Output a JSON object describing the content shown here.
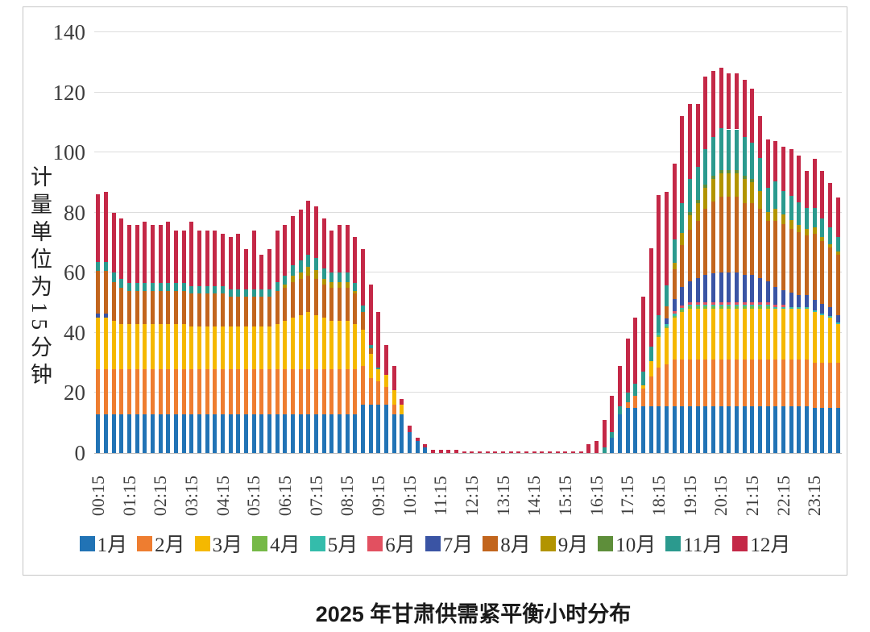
{
  "chart_title": "2025 年甘肃供需紧平衡小时分布",
  "y_axis_title": "计量单位为15分钟",
  "chart_data": {
    "type": "bar",
    "stacked": true,
    "grid": true,
    "legend_position": "bottom",
    "bar_count": 96,
    "x_start": "00:15",
    "x_interval_minutes": 15,
    "x_tick_labels": [
      "00:15",
      "01:15",
      "02:15",
      "03:15",
      "04:15",
      "05:15",
      "06:15",
      "07:15",
      "08:15",
      "09:15",
      "10:15",
      "11:15",
      "12:15",
      "13:15",
      "14:15",
      "15:15",
      "16:15",
      "17:15",
      "18:15",
      "19:15",
      "20:15",
      "21:15",
      "22:15",
      "23:15"
    ],
    "y_ticks": [
      0,
      20,
      40,
      60,
      80,
      100,
      120,
      140
    ],
    "y_max": 140,
    "series": [
      {
        "name": "1月",
        "color": "#2173b5",
        "values": [
          13,
          13,
          13,
          13,
          13,
          13,
          13,
          13,
          13,
          13,
          13,
          13,
          13,
          13,
          13,
          13,
          13,
          13,
          13,
          13,
          13,
          13,
          13,
          13,
          13,
          13,
          13,
          13,
          13,
          13,
          13,
          13,
          13,
          13,
          16,
          16,
          16,
          16,
          13,
          13,
          7,
          4,
          2,
          0,
          0,
          0,
          0,
          0,
          0,
          0,
          0,
          0,
          0,
          0,
          0,
          0,
          0,
          0,
          0,
          0,
          0,
          0,
          0,
          0,
          0,
          0,
          5,
          13,
          15,
          15,
          15.5,
          15.5,
          15.5,
          15.5,
          15.5,
          15.5,
          15.5,
          15.5,
          15.5,
          15.5,
          15.5,
          15.5,
          15.5,
          15.5,
          15.5,
          15.5,
          15.5,
          15.5,
          15.5,
          15.5,
          15.5,
          15.5,
          15,
          15,
          15,
          15
        ]
      },
      {
        "name": "2月",
        "color": "#ee7d30",
        "values": [
          15,
          15,
          15,
          15,
          15,
          15,
          15,
          15,
          15,
          15,
          15,
          15,
          15,
          15,
          15,
          15,
          15,
          15,
          15,
          15,
          15,
          15,
          15,
          15,
          15,
          15,
          15,
          15,
          15,
          15,
          15,
          15,
          15,
          15,
          13,
          9,
          8,
          6,
          3,
          0,
          0,
          0,
          0,
          0,
          0,
          0,
          0,
          0,
          0,
          0,
          0,
          0,
          0,
          0,
          0,
          0,
          0,
          0,
          0,
          0,
          0,
          0,
          0,
          0,
          0,
          0,
          0,
          0,
          2,
          4,
          6,
          10,
          13,
          14,
          15.5,
          15.5,
          15.5,
          15.5,
          15.5,
          15.5,
          15.5,
          15.5,
          15.5,
          15.5,
          15.5,
          15.5,
          15.5,
          15.5,
          15.5,
          15.5,
          15.5,
          15.5,
          15,
          15,
          15,
          15
        ]
      },
      {
        "name": "3月",
        "color": "#f5b800",
        "values": [
          17,
          17,
          16,
          15,
          15,
          15,
          15,
          15,
          15,
          15,
          15,
          15,
          14,
          14,
          14,
          14,
          14,
          14,
          14,
          14,
          14,
          14,
          14,
          15,
          16,
          17,
          18,
          19,
          18,
          17,
          16,
          16,
          16,
          15,
          12,
          8,
          4,
          4,
          5,
          3,
          0,
          0,
          0,
          0,
          0,
          0,
          0,
          0,
          0,
          0,
          0,
          0,
          0,
          0,
          0,
          0,
          0,
          0,
          0,
          0,
          0,
          0,
          0,
          0,
          0,
          0,
          0,
          0,
          0,
          0,
          1,
          5,
          10,
          12,
          14,
          16,
          17,
          17,
          17,
          17,
          17,
          17,
          17,
          17,
          17,
          17,
          17,
          17,
          17,
          17,
          17,
          17,
          17,
          16,
          15,
          13
        ]
      },
      {
        "name": "4月",
        "color": "#76b947",
        "values": [
          0,
          0,
          0,
          0,
          0,
          0,
          0,
          0,
          0,
          0,
          0,
          0,
          0,
          0,
          0,
          0,
          0,
          0,
          0,
          0,
          0,
          0,
          0,
          0,
          0,
          0,
          0,
          0,
          0,
          0,
          0,
          0,
          0,
          0,
          0,
          0,
          0,
          0,
          0,
          0,
          0,
          0,
          0,
          0,
          0,
          0,
          0,
          0,
          0,
          0,
          0,
          0,
          0,
          0,
          0,
          0,
          0,
          0,
          0,
          0,
          0,
          0,
          0,
          0,
          0,
          0,
          0,
          0,
          0,
          0,
          0,
          0,
          0.7,
          0.7,
          0.7,
          0.7,
          0.7,
          0.7,
          0.7,
          0.7,
          0.7,
          0.7,
          0.7,
          0.7,
          0.7,
          0.7,
          0.7,
          0,
          0,
          0,
          0,
          0,
          0,
          0,
          0,
          0
        ]
      },
      {
        "name": "5月",
        "color": "#34bcab",
        "values": [
          0,
          0,
          0,
          0,
          0,
          0,
          0,
          0,
          0,
          0,
          0,
          0,
          0,
          0,
          0,
          0,
          0,
          0,
          0,
          0,
          0,
          0,
          0,
          0,
          0,
          0,
          0,
          0,
          0,
          0,
          0,
          0,
          0,
          0,
          0,
          0,
          0,
          0,
          0,
          0,
          0,
          0,
          0,
          0,
          0,
          0,
          0,
          0,
          0,
          0,
          0,
          0,
          0,
          0,
          0,
          0,
          0,
          0,
          0,
          0,
          0,
          0,
          0,
          0,
          0,
          0,
          0,
          0,
          0,
          0,
          0,
          0,
          0.7,
          0.7,
          0.7,
          0.7,
          0.7,
          0.7,
          0.7,
          0.7,
          0.7,
          0.7,
          0.7,
          0.7,
          0.7,
          0.7,
          0.7,
          0.5,
          0.5,
          0.5,
          0.5,
          0.5,
          0.5,
          0.5,
          0.5,
          0.5
        ]
      },
      {
        "name": "6月",
        "color": "#e25060",
        "values": [
          0,
          0,
          0,
          0,
          0,
          0,
          0,
          0,
          0,
          0,
          0,
          0,
          0,
          0,
          0,
          0,
          0,
          0,
          0,
          0,
          0,
          0,
          0,
          0,
          0,
          0,
          0,
          0,
          0,
          0,
          0,
          0,
          0,
          0,
          0,
          0,
          0,
          0,
          0,
          0,
          0,
          0,
          0,
          0,
          0,
          0,
          0,
          0,
          0,
          0,
          0,
          0,
          0,
          0,
          0,
          0,
          0,
          0,
          0,
          0,
          0,
          0,
          0,
          0,
          0,
          0,
          0,
          0,
          0,
          0,
          0,
          0,
          0,
          0,
          0.8,
          0.8,
          0.8,
          0.8,
          0.8,
          0.8,
          0.8,
          0.8,
          0.8,
          0.8,
          0.8,
          0.8,
          0.8,
          0.8,
          0.8,
          0,
          0,
          0,
          0,
          0,
          0,
          0
        ]
      },
      {
        "name": "7月",
        "color": "#3a54a4",
        "values": [
          1.5,
          1.5,
          0,
          0,
          0,
          0,
          0,
          0,
          0,
          0,
          0,
          0,
          0,
          0,
          0,
          0,
          0,
          0,
          0,
          0,
          0,
          0,
          0,
          0,
          0,
          0,
          0,
          0,
          0,
          0,
          0,
          0,
          0,
          0,
          0,
          0,
          0,
          0,
          0,
          0,
          0,
          0,
          0,
          0,
          0,
          0,
          0,
          0,
          0,
          0,
          0,
          0,
          0,
          0,
          0,
          0,
          0,
          0,
          0,
          0,
          0,
          0,
          0,
          0,
          0,
          0,
          0,
          0,
          0,
          0,
          0,
          0,
          0,
          2,
          4,
          6,
          7,
          8,
          9,
          9.5,
          10,
          10,
          10,
          9,
          9,
          8,
          7,
          6,
          5,
          5,
          4,
          4,
          3.5,
          3,
          3,
          2.5
        ]
      },
      {
        "name": "8月",
        "color": "#c2651d",
        "values": [
          14,
          14,
          13,
          12,
          11,
          11,
          11,
          11,
          11,
          11,
          11,
          11,
          11,
          11,
          11,
          11,
          11,
          10,
          10,
          10,
          10,
          10,
          10,
          11,
          11,
          12,
          12,
          12,
          12,
          11,
          11,
          11,
          11,
          10,
          6,
          2,
          0,
          0,
          0,
          0,
          0,
          0,
          0,
          0,
          0,
          0,
          0,
          0,
          0,
          0,
          0,
          0,
          0,
          0,
          0,
          0,
          0,
          0,
          0,
          0,
          0,
          0,
          0,
          0,
          0,
          0,
          0,
          0,
          0,
          0,
          0,
          0,
          0,
          4,
          10,
          14,
          17,
          19,
          22,
          24,
          25,
          25,
          25,
          24,
          24,
          23,
          20,
          22,
          22,
          21,
          21,
          20,
          22,
          21,
          20,
          20
        ]
      },
      {
        "name": "9月",
        "color": "#b29400",
        "values": [
          0,
          0,
          0,
          0,
          0,
          0,
          0,
          0,
          0,
          0,
          0,
          0,
          0,
          0,
          0,
          0,
          0,
          0,
          0,
          0,
          0,
          0,
          0,
          0,
          1,
          2,
          2,
          3,
          3,
          2,
          2,
          2,
          2,
          1,
          0,
          0,
          0,
          0,
          0,
          0,
          0,
          0,
          0,
          0,
          0,
          0,
          0,
          0,
          0,
          0,
          0,
          0,
          0,
          0,
          0,
          0,
          0,
          0,
          0,
          0,
          0,
          0,
          0,
          0,
          0,
          0,
          0,
          0,
          0,
          0,
          0,
          0,
          0,
          0,
          2,
          4,
          5,
          6,
          7,
          7.5,
          8,
          8,
          8,
          8,
          7,
          6,
          3,
          4,
          3,
          3,
          2.5,
          2,
          2,
          1.5,
          1,
          1
        ]
      },
      {
        "name": "10月",
        "color": "#5e8e3a",
        "values": [
          0,
          0,
          0,
          0,
          0,
          0,
          0,
          0,
          0,
          0,
          0,
          0,
          0,
          0,
          0,
          0,
          0,
          0,
          0,
          0,
          0,
          0,
          0,
          0,
          0,
          0,
          0,
          0,
          0,
          0,
          0,
          0,
          0,
          0,
          0,
          0,
          0,
          0,
          0,
          0,
          0,
          0,
          0,
          0,
          0,
          0,
          0,
          0,
          0,
          0,
          0,
          0,
          0,
          0,
          0,
          0,
          0,
          0,
          0,
          0,
          0,
          0,
          0,
          0,
          0,
          0,
          0,
          0,
          0,
          0,
          0,
          0,
          0,
          0,
          0,
          0,
          1,
          1,
          1,
          1,
          1,
          1,
          1,
          1,
          1,
          0,
          0,
          0,
          0,
          0,
          0,
          0,
          0,
          0,
          0,
          0
        ]
      },
      {
        "name": "11月",
        "color": "#2b9a8e",
        "values": [
          3,
          3,
          3,
          3,
          2.5,
          2.5,
          2.5,
          2.5,
          2.5,
          2.5,
          2.5,
          2.5,
          2.5,
          2.5,
          2.5,
          2.5,
          2.5,
          2.5,
          2.5,
          2.5,
          2.5,
          2.5,
          2.5,
          3,
          3,
          3.5,
          4,
          4,
          4,
          3.5,
          3,
          3,
          3,
          2.5,
          2,
          1,
          0.5,
          0,
          0,
          0,
          0,
          0,
          0,
          0,
          0,
          0,
          0,
          0,
          0,
          0,
          0,
          0,
          0,
          0,
          0,
          0,
          0,
          0,
          0,
          0,
          0,
          0,
          0,
          0,
          0,
          2,
          2,
          2.5,
          3,
          4,
          4.5,
          5,
          6,
          7,
          8,
          10,
          11,
          11,
          12,
          13,
          14,
          13.5,
          13.5,
          13,
          12,
          11,
          8,
          9,
          8,
          8,
          7.5,
          7,
          6.5,
          6,
          5.5,
          5
        ]
      },
      {
        "name": "12月",
        "color": "#c42847",
        "values": [
          22.5,
          23.5,
          20,
          20,
          19.5,
          19.5,
          20.5,
          19.5,
          19.5,
          20.5,
          17.5,
          17.5,
          21.5,
          18.5,
          18.5,
          18.5,
          17.5,
          17.5,
          18.5,
          13.5,
          19.5,
          11.5,
          13.5,
          17,
          17,
          16.5,
          17,
          18,
          17,
          16.5,
          14,
          16,
          16,
          15.5,
          19,
          20,
          18.5,
          10,
          8,
          2,
          2,
          1,
          1,
          1,
          1,
          1,
          1,
          0.5,
          0.5,
          0.5,
          0.5,
          0.5,
          0.5,
          0.5,
          0.5,
          0.5,
          0.5,
          0.5,
          0.5,
          0.5,
          0.5,
          0.5,
          0.5,
          3,
          4,
          9,
          12,
          13.5,
          18,
          22,
          25,
          32.5,
          40,
          31,
          25,
          29,
          25,
          21,
          24,
          22,
          20,
          18.5,
          18.5,
          19,
          18,
          14,
          16,
          13.5,
          14.5,
          15.5,
          15.5,
          12.5,
          16.5,
          16,
          15,
          13
        ]
      }
    ]
  }
}
